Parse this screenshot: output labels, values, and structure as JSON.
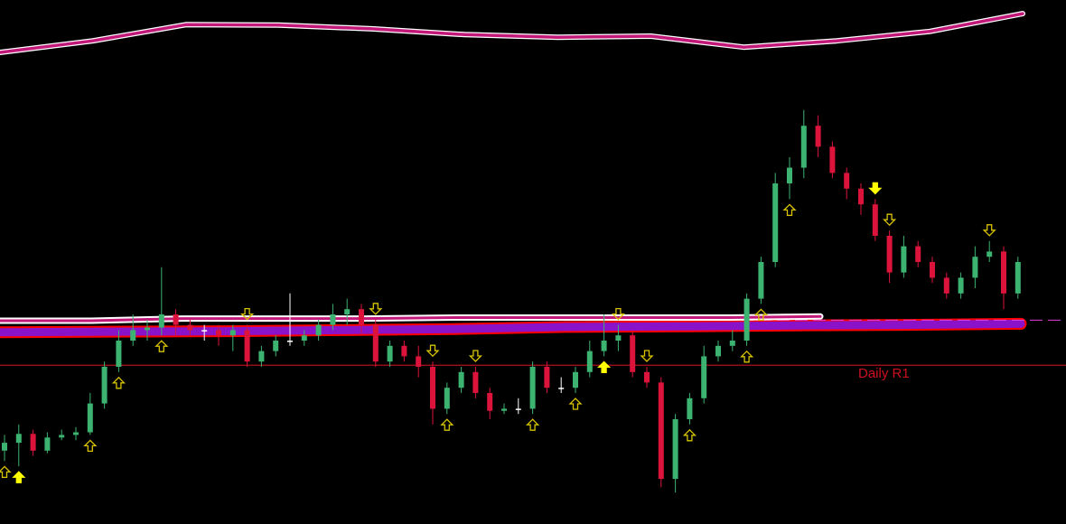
{
  "chart_data": {
    "type": "candlestick",
    "ylim": [
      0,
      100
    ],
    "grid": false,
    "colors": {
      "background": "#000000",
      "bull": "#3cb371",
      "bear": "#dc143c",
      "envelope": "#c2187a",
      "envelope_edge": "#ffffff",
      "band": "#8a12c8",
      "band_edge": "#ff0000",
      "pivot": "#b01020",
      "arrow": "#ffff00"
    },
    "candles": [
      [
        14,
        17,
        12,
        15.5
      ],
      [
        15.5,
        19,
        11,
        17.2
      ],
      [
        17.2,
        18,
        13,
        14
      ],
      [
        14,
        17.5,
        13.5,
        16.5
      ],
      [
        16.5,
        18,
        16,
        17
      ],
      [
        17,
        18.5,
        16,
        17.5
      ],
      [
        17.5,
        25,
        17,
        23
      ],
      [
        23,
        31,
        22,
        30
      ],
      [
        30,
        37,
        29,
        35
      ],
      [
        35,
        40,
        34,
        37
      ],
      [
        37,
        39,
        35,
        37.5
      ],
      [
        37.5,
        49,
        36,
        40
      ],
      [
        40,
        41,
        36,
        38
      ],
      [
        38,
        39,
        36,
        37
      ],
      [
        37,
        38,
        35,
        37
      ],
      [
        37,
        38,
        34,
        36
      ],
      [
        36,
        38,
        33,
        37
      ],
      [
        37,
        38,
        30,
        31
      ],
      [
        31,
        34,
        30,
        33
      ],
      [
        33,
        36,
        32,
        35
      ],
      [
        35,
        44,
        34,
        35
      ],
      [
        35,
        37,
        34,
        36
      ],
      [
        36,
        39,
        35,
        38
      ],
      [
        38,
        42,
        37,
        40
      ],
      [
        40,
        43,
        38,
        41
      ],
      [
        41,
        42,
        36,
        38
      ],
      [
        38,
        39,
        30,
        31
      ],
      [
        31,
        35,
        30,
        34
      ],
      [
        34,
        35,
        31,
        32
      ],
      [
        32,
        34,
        28,
        30
      ],
      [
        30,
        31,
        19,
        22
      ],
      [
        22,
        27,
        21,
        26
      ],
      [
        26,
        30,
        25,
        29
      ],
      [
        29,
        30,
        24,
        25
      ],
      [
        25,
        26,
        20,
        21.6
      ],
      [
        21.6,
        23,
        21,
        22
      ],
      [
        22,
        24,
        21,
        22
      ],
      [
        22,
        31,
        21,
        30
      ],
      [
        30,
        31,
        25,
        26
      ],
      [
        26,
        28,
        25,
        26
      ],
      [
        26,
        30,
        25,
        29
      ],
      [
        29,
        35,
        28,
        33
      ],
      [
        33,
        40,
        32,
        35
      ],
      [
        35,
        38,
        33,
        36
      ],
      [
        36,
        37,
        28,
        29
      ],
      [
        29,
        30,
        26,
        27
      ],
      [
        27,
        28,
        7,
        8.6
      ],
      [
        8.6,
        21,
        6,
        20
      ],
      [
        20,
        25,
        19,
        24
      ],
      [
        24,
        34,
        23,
        32
      ],
      [
        32,
        35,
        31,
        34
      ],
      [
        34,
        37,
        33,
        35
      ],
      [
        35,
        44,
        34,
        43
      ],
      [
        43,
        51,
        42,
        50
      ],
      [
        50,
        67,
        49,
        65
      ],
      [
        65,
        70,
        62,
        68
      ],
      [
        68,
        79,
        66,
        76
      ],
      [
        76,
        78,
        70,
        72
      ],
      [
        72,
        73,
        66,
        67
      ],
      [
        67,
        68,
        62,
        64
      ],
      [
        64,
        65,
        59,
        61
      ],
      [
        61,
        62,
        54,
        55
      ],
      [
        55,
        56,
        46,
        48
      ],
      [
        48,
        55,
        47,
        53
      ],
      [
        53,
        54,
        49,
        50
      ],
      [
        50,
        51,
        46,
        47
      ],
      [
        47,
        48,
        43,
        44
      ],
      [
        44,
        48,
        43,
        47
      ],
      [
        47,
        53,
        45,
        51
      ],
      [
        51,
        54,
        50,
        52
      ],
      [
        52,
        53,
        41,
        44
      ],
      [
        44,
        51,
        43,
        50
      ]
    ],
    "upper_envelope": [
      90,
      92.2,
      95.3,
      95.2,
      94.5,
      93.4,
      92.9,
      93.1,
      91,
      92.2,
      94,
      97.4
    ],
    "middle_envelope": [
      38.8,
      38.8,
      39.2,
      39.2,
      39.2,
      39.4,
      39.4,
      39.4,
      39.4,
      39.6
    ],
    "band": [
      36.6,
      36.7,
      36.8,
      37.0,
      37.2,
      37.6,
      37.7,
      37.9,
      38.0,
      38.2
    ],
    "pivots": [
      {
        "label": "Daily R1",
        "value": 30.3
      }
    ],
    "dashed_level": 38.9,
    "signals": [
      {
        "candle": 1,
        "dir": "up",
        "style": "solid"
      },
      {
        "candle": 0,
        "dir": "up",
        "style": "hollow"
      },
      {
        "candle": 6,
        "dir": "up",
        "style": "hollow"
      },
      {
        "candle": 8,
        "dir": "up",
        "style": "hollow"
      },
      {
        "candle": 11,
        "dir": "up",
        "style": "hollow"
      },
      {
        "candle": 17,
        "dir": "down",
        "style": "hollow"
      },
      {
        "candle": 26,
        "dir": "down",
        "style": "hollow"
      },
      {
        "candle": 30,
        "dir": "down",
        "style": "hollow"
      },
      {
        "candle": 31,
        "dir": "up",
        "style": "hollow"
      },
      {
        "candle": 33,
        "dir": "down",
        "style": "hollow"
      },
      {
        "candle": 37,
        "dir": "up",
        "style": "hollow"
      },
      {
        "candle": 40,
        "dir": "up",
        "style": "hollow"
      },
      {
        "candle": 42,
        "dir": "up",
        "style": "solid"
      },
      {
        "candle": 43,
        "dir": "down",
        "style": "hollow"
      },
      {
        "candle": 45,
        "dir": "down",
        "style": "hollow"
      },
      {
        "candle": 48,
        "dir": "up",
        "style": "hollow"
      },
      {
        "candle": 52,
        "dir": "up",
        "style": "hollow"
      },
      {
        "candle": 53,
        "dir": "up",
        "style": "hollow"
      },
      {
        "candle": 55,
        "dir": "up",
        "style": "hollow"
      },
      {
        "candle": 61,
        "dir": "down",
        "style": "solid"
      },
      {
        "candle": 62,
        "dir": "down",
        "style": "hollow"
      },
      {
        "candle": 69,
        "dir": "down",
        "style": "hollow"
      }
    ]
  }
}
